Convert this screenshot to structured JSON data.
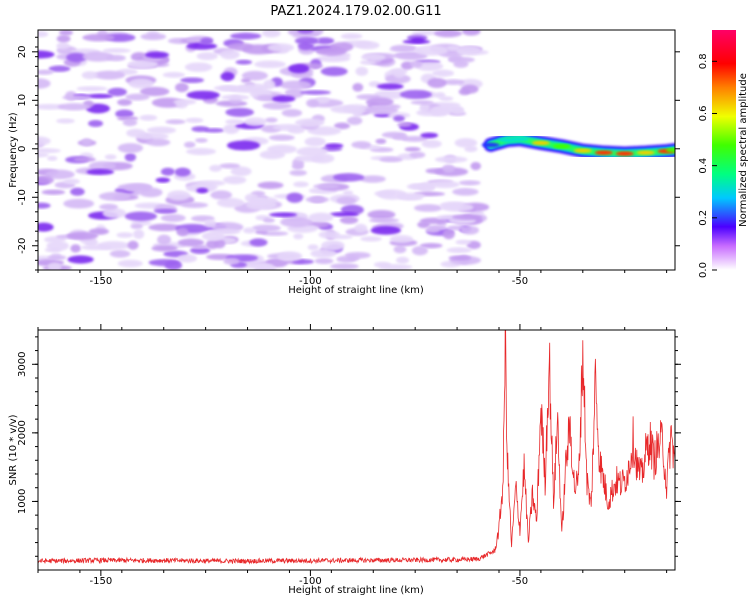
{
  "title": "PAZ1.2024.179.02.00.G11",
  "colors": {
    "snr_line": "#e8282a",
    "spectrogram_weak": "#c9a7f2",
    "spectrogram_mid": "#7f2fe8",
    "spectrogram_strong": "#4b00ff"
  },
  "chart_data": [
    {
      "type": "heatmap",
      "title": "PAZ1.2024.179.02.00.G11",
      "xlabel": "Height of straight line (km)",
      "ylabel": "Frequency (Hz)",
      "xlim": [
        -165,
        -13
      ],
      "ylim": [
        -25,
        24.5
      ],
      "xticks": [
        -150,
        -100,
        -50
      ],
      "yticks": [
        -20,
        -10,
        0,
        10,
        20
      ],
      "grid": false,
      "noise_region": {
        "x_range": [
          -165,
          -60
        ],
        "y_range": [
          -25,
          24.5
        ],
        "amplitude_max": 0.2
      },
      "signal_track": {
        "description_points_x": [
          -57,
          -53,
          -50,
          -45,
          -40,
          -35,
          -30,
          -25,
          -20,
          -15,
          -13
        ],
        "frequency_hz": [
          0.8,
          1.8,
          2.0,
          1.2,
          0.5,
          -0.4,
          -0.8,
          -1.0,
          -0.8,
          -0.5,
          -0.3
        ],
        "amplitude": [
          0.3,
          0.45,
          0.5,
          0.65,
          0.6,
          0.7,
          0.8,
          0.75,
          0.7,
          0.8,
          0.6
        ]
      },
      "colorbar": {
        "label": "Normalized spectral amplitude",
        "range": [
          0.0,
          0.92
        ],
        "ticks": [
          0.0,
          0.2,
          0.4,
          0.6,
          0.8
        ],
        "colormap": "hsv"
      }
    },
    {
      "type": "line",
      "xlabel": "Height of straight line (km)",
      "ylabel": "SNR (10 * v/v)",
      "xlim": [
        -165,
        -13
      ],
      "ylim": [
        0,
        3500
      ],
      "xticks": [
        -150,
        -100,
        -50
      ],
      "yticks": [
        1000,
        2000,
        3000
      ],
      "grid": false,
      "series": [
        {
          "x": [
            -165,
            -150,
            -135,
            -120,
            -105,
            -90,
            -75,
            -65,
            -60,
            -58,
            -56,
            -55,
            -54,
            -53.5,
            -53,
            -52,
            -51,
            -50,
            -49,
            -48,
            -47,
            -46,
            -45,
            -44,
            -43,
            -42,
            -41,
            -40,
            -39,
            -38,
            -37,
            -36,
            -35,
            -34,
            -33,
            -32,
            -31,
            -30,
            -29,
            -28,
            -27,
            -26,
            -25,
            -24,
            -23,
            -22,
            -21,
            -20,
            -19,
            -18,
            -17,
            -16,
            -15,
            -14,
            -13
          ],
          "values": [
            130,
            140,
            140,
            130,
            135,
            140,
            145,
            150,
            160,
            220,
            280,
            600,
            1300,
            3450,
            1600,
            350,
            1200,
            600,
            1500,
            400,
            1100,
            700,
            2400,
            1300,
            3100,
            1000,
            2200,
            500,
            1600,
            2100,
            1200,
            1300,
            3200,
            1300,
            900,
            2800,
            1600,
            1300,
            1000,
            1150,
            1300,
            1250,
            1300,
            1500,
            1900,
            1500,
            1350,
            1700,
            1900,
            1600,
            1800,
            1900,
            1200,
            1950,
            1600
          ]
        }
      ]
    }
  ]
}
